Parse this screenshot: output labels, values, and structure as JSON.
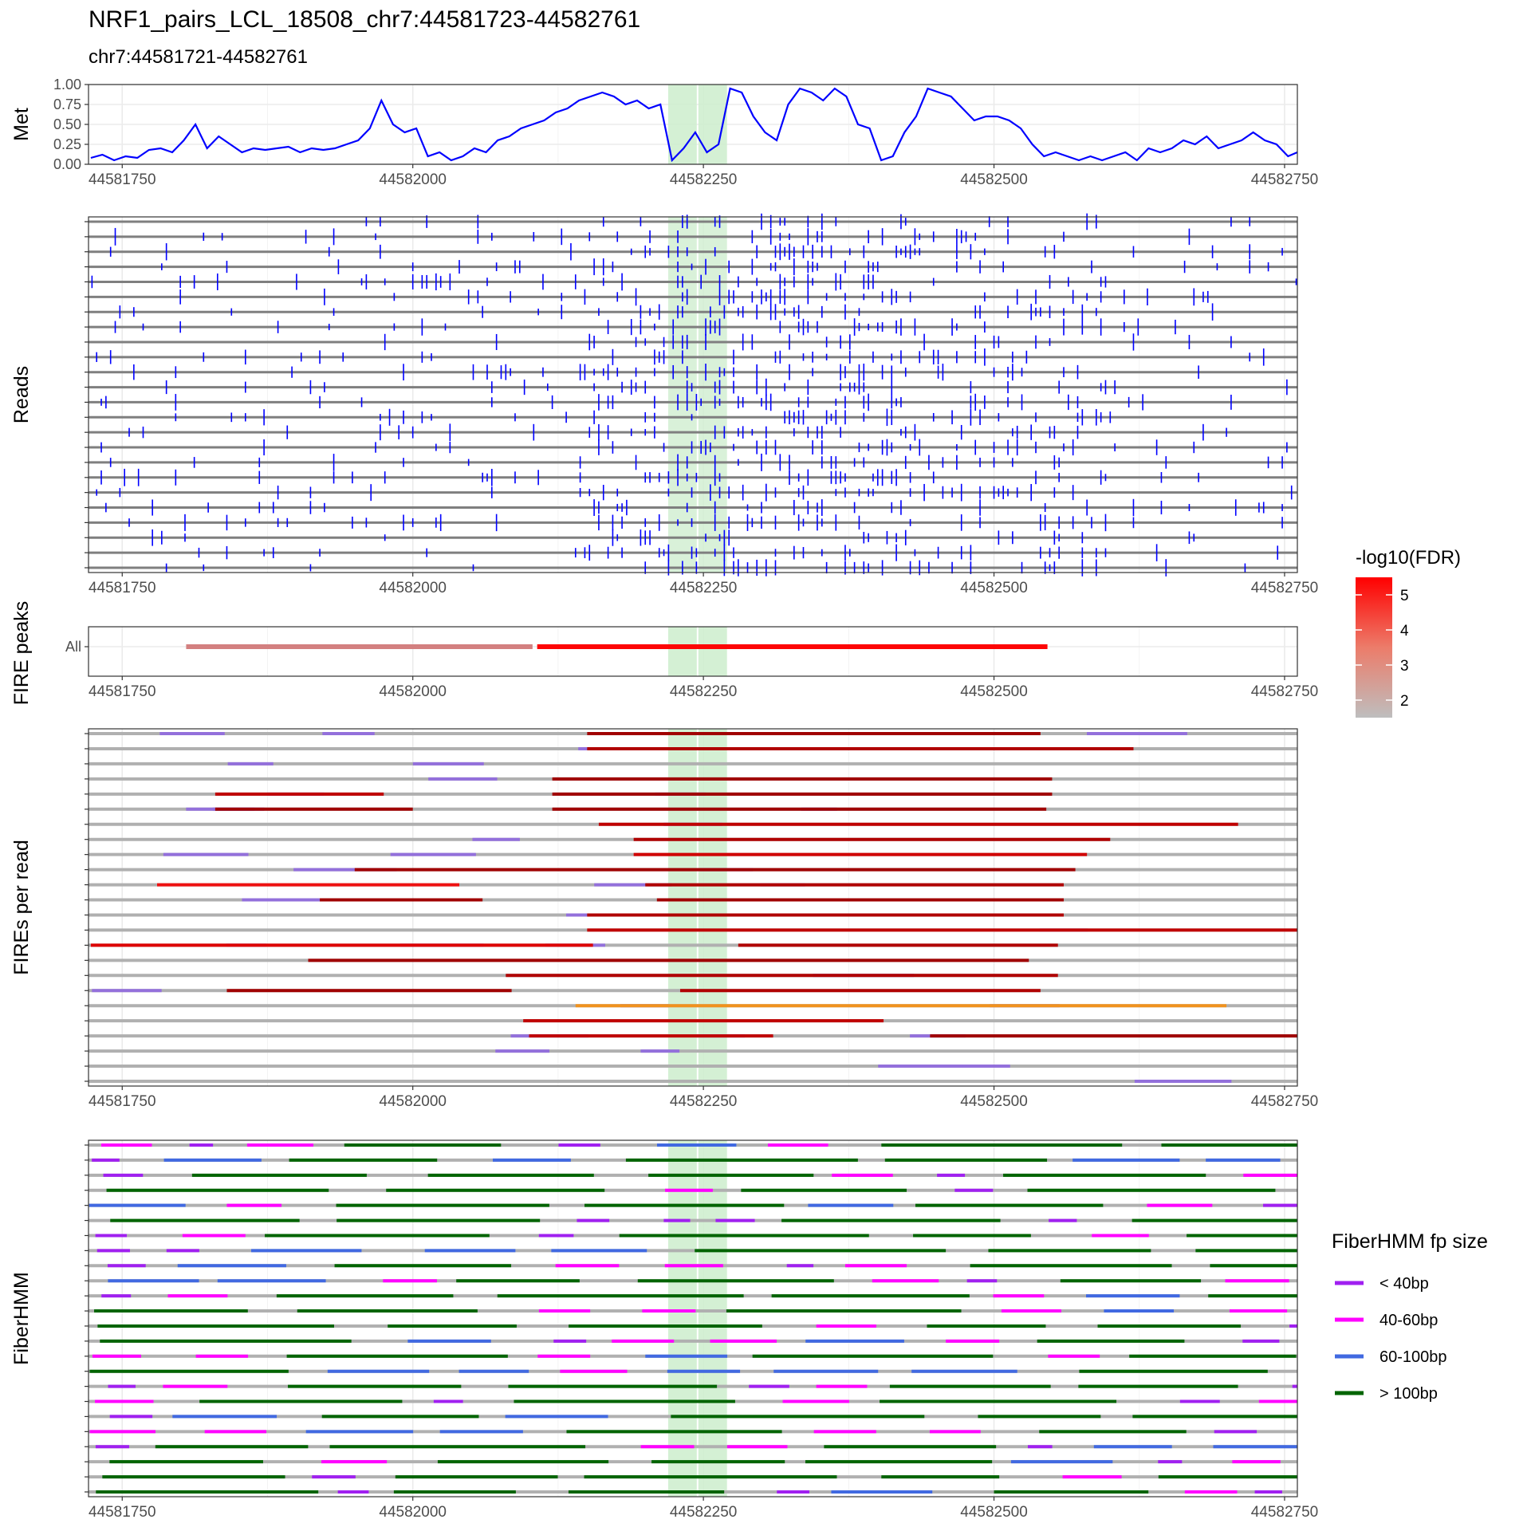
{
  "title": "NRF1_pairs_LCL_18508_chr7:44581723-44582761",
  "subtitle": "chr7:44581721-44582761",
  "x_range": [
    44581721,
    44582761
  ],
  "x_ticks": [
    44581750,
    44582000,
    44582250,
    44582500,
    44582750
  ],
  "highlight_regions": [
    [
      44582219,
      44582245
    ],
    [
      44582245,
      44582271
    ]
  ],
  "colors": {
    "met_line": "#0000ff",
    "read_mark": "#0000ff",
    "read_line": "#7f7f7f",
    "highlight": "#cfeecf",
    "fire_gray": "#b0b0b0",
    "fire_linker": "#9370db",
    "fire_orange": "#f0921e",
    "fp_lt40": "#a020f0",
    "fp_40_60": "#ff00ff",
    "fp_60_100": "#4169e1",
    "fp_gt100": "#006400"
  },
  "chart_data": [
    {
      "type": "line",
      "panel_label": "Met",
      "yticks": [
        "0.00",
        "0.25",
        "0.50",
        "0.75",
        "1.00"
      ],
      "ylim": [
        0,
        1
      ],
      "x": [
        44581723,
        44581733,
        44581743,
        44581753,
        44581763,
        44581773,
        44581783,
        44581793,
        44581803,
        44581813,
        44581823,
        44581833,
        44581843,
        44581853,
        44581863,
        44581873,
        44581883,
        44581893,
        44581903,
        44581913,
        44581923,
        44581933,
        44581943,
        44581953,
        44581963,
        44581973,
        44581983,
        44581993,
        44582003,
        44582013,
        44582023,
        44582033,
        44582043,
        44582053,
        44582063,
        44582073,
        44582083,
        44582093,
        44582103,
        44582113,
        44582123,
        44582133,
        44582143,
        44582153,
        44582163,
        44582173,
        44582183,
        44582193,
        44582203,
        44582213,
        44582223,
        44582233,
        44582243,
        44582253,
        44582263,
        44582273,
        44582283,
        44582293,
        44582303,
        44582313,
        44582323,
        44582333,
        44582343,
        44582353,
        44582363,
        44582373,
        44582383,
        44582393,
        44582403,
        44582413,
        44582423,
        44582433,
        44582443,
        44582453,
        44582463,
        44582473,
        44582483,
        44582493,
        44582503,
        44582513,
        44582523,
        44582533,
        44582543,
        44582553,
        44582563,
        44582573,
        44582583,
        44582593,
        44582603,
        44582613,
        44582623,
        44582633,
        44582643,
        44582653,
        44582663,
        44582673,
        44582683,
        44582693,
        44582703,
        44582713,
        44582723,
        44582733,
        44582743,
        44582753,
        44582761
      ],
      "y": [
        0.08,
        0.12,
        0.05,
        0.1,
        0.08,
        0.18,
        0.2,
        0.15,
        0.3,
        0.5,
        0.2,
        0.35,
        0.25,
        0.15,
        0.2,
        0.18,
        0.2,
        0.22,
        0.15,
        0.2,
        0.18,
        0.2,
        0.25,
        0.3,
        0.45,
        0.8,
        0.5,
        0.4,
        0.45,
        0.1,
        0.15,
        0.05,
        0.1,
        0.2,
        0.15,
        0.3,
        0.35,
        0.45,
        0.5,
        0.55,
        0.65,
        0.7,
        0.8,
        0.85,
        0.9,
        0.85,
        0.75,
        0.8,
        0.7,
        0.75,
        0.05,
        0.2,
        0.4,
        0.15,
        0.25,
        0.95,
        0.9,
        0.6,
        0.4,
        0.3,
        0.75,
        0.95,
        0.9,
        0.8,
        0.95,
        0.85,
        0.5,
        0.45,
        0.05,
        0.1,
        0.4,
        0.6,
        0.95,
        0.9,
        0.85,
        0.7,
        0.55,
        0.6,
        0.6,
        0.55,
        0.45,
        0.25,
        0.1,
        0.15,
        0.1,
        0.05,
        0.1,
        0.05,
        0.1,
        0.15,
        0.05,
        0.2,
        0.15,
        0.2,
        0.3,
        0.25,
        0.35,
        0.2,
        0.25,
        0.3,
        0.4,
        0.3,
        0.25,
        0.1,
        0.15
      ]
    },
    {
      "type": "scatter",
      "panel_label": "Reads",
      "n_reads": 24
    },
    {
      "type": "bar",
      "panel_label": "FIRE peaks",
      "ytick": "All",
      "peaks": [
        {
          "start": 44581805,
          "end": 44582103,
          "fdr": 2.8
        },
        {
          "start": 44582107,
          "end": 44582546,
          "fdr": 5.4
        }
      ]
    },
    {
      "type": "bar",
      "panel_label": "FIREs per read",
      "n_reads": 24
    },
    {
      "type": "bar",
      "panel_label": "FiberHMM",
      "n_reads": 24
    }
  ],
  "legend_fdr": {
    "title": "-log10(FDR)",
    "ticks": [
      "5",
      "4",
      "3",
      "2"
    ],
    "range": [
      1.5,
      5.5
    ]
  },
  "legend_fp": {
    "title": "FiberHMM fp size",
    "items": [
      "< 40bp",
      "40-60bp",
      "60-100bp",
      "> 100bp"
    ]
  }
}
